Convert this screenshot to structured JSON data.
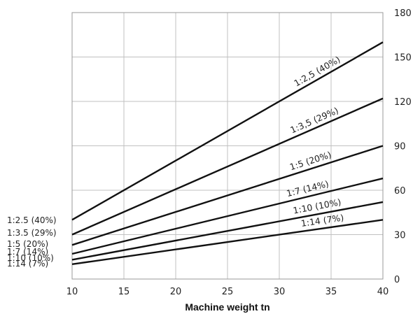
{
  "chart_data": {
    "type": "line",
    "title": "",
    "xlabel": "Machine weight tn",
    "ylabel": "",
    "xlim": [
      10,
      40
    ],
    "ylim": [
      0,
      180
    ],
    "x_ticks": [
      "10",
      "15",
      "20",
      "25",
      "30",
      "35",
      "40"
    ],
    "y_ticks": [
      "0",
      "30",
      "60",
      "90",
      "120",
      "150",
      "180"
    ],
    "y_axis_side": "right",
    "grid": true,
    "line_color": "#111111",
    "grid_color": "#c0c0c0",
    "x": [
      10,
      40
    ],
    "series": [
      {
        "name": "1:2,5 (40%)",
        "left_label": "1:2.5 (40%)",
        "values": [
          40,
          160
        ]
      },
      {
        "name": "1:3,5 (29%)",
        "left_label": "1:3.5 (29%)",
        "values": [
          30,
          122
        ]
      },
      {
        "name": "1:5 (20%)",
        "left_label": "1:5 (20%)",
        "values": [
          23,
          90
        ]
      },
      {
        "name": "1:7 (14%)",
        "left_label": "1:7 (14%)",
        "values": [
          17,
          68
        ]
      },
      {
        "name": "1:10 (10%)",
        "left_label": "1:10 (10%)",
        "values": [
          13,
          52
        ]
      },
      {
        "name": "1:14 (7%)",
        "left_label": "1:14 (7%)",
        "values": [
          10,
          40
        ]
      }
    ]
  }
}
